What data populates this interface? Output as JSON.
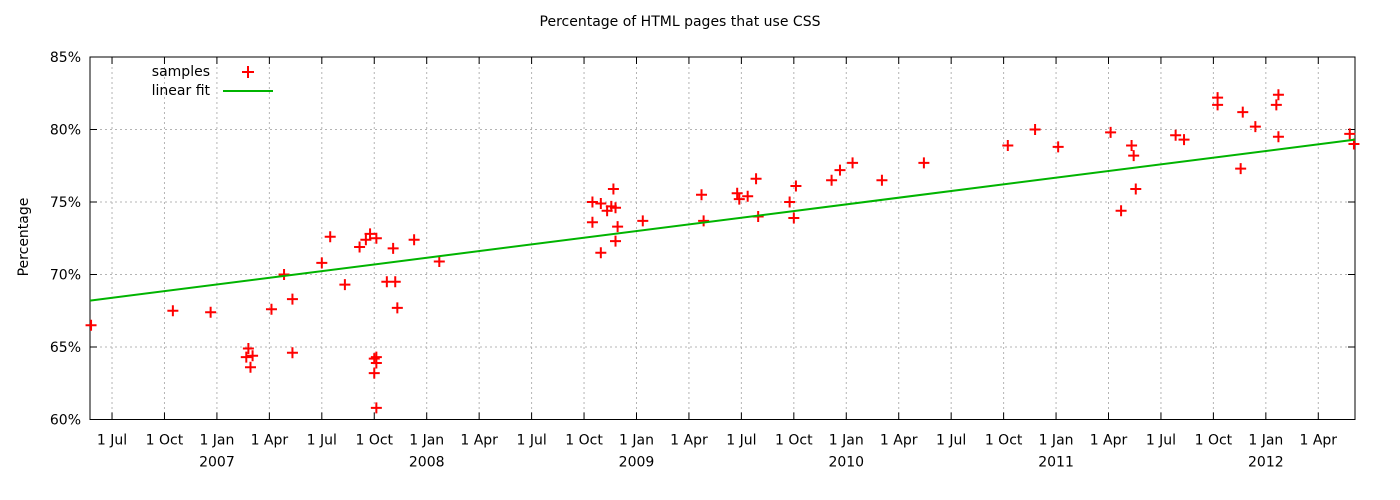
{
  "chart_data": {
    "type": "scatter",
    "title": "Percentage of HTML pages that use CSS",
    "xlabel": "",
    "ylabel": "Percentage",
    "xlim": [
      2006.395,
      2012.425
    ],
    "ylim": [
      60,
      85
    ],
    "grid": true,
    "legend_position": "top-left-inside",
    "legend": {
      "samples": "samples",
      "linear_fit": "linear fit"
    },
    "colors": {
      "samples": "#ff0000",
      "fit": "#00b400",
      "grid": "#b4b4b4",
      "axis": "#000000",
      "text": "#000000",
      "background": "#ffffff"
    },
    "y_ticks": [
      {
        "v": 60,
        "label": "60%"
      },
      {
        "v": 65,
        "label": "65%"
      },
      {
        "v": 70,
        "label": "70%"
      },
      {
        "v": 75,
        "label": "75%"
      },
      {
        "v": 80,
        "label": "80%"
      },
      {
        "v": 85,
        "label": "85%"
      }
    ],
    "x_ticks": [
      {
        "t": 2006.5,
        "label": "1 Jul"
      },
      {
        "t": 2006.75,
        "label": "1 Oct"
      },
      {
        "t": 2007.0,
        "label": "1 Jan"
      },
      {
        "t": 2007.25,
        "label": "1 Apr"
      },
      {
        "t": 2007.5,
        "label": "1 Jul"
      },
      {
        "t": 2007.75,
        "label": "1 Oct"
      },
      {
        "t": 2008.0,
        "label": "1 Jan"
      },
      {
        "t": 2008.25,
        "label": "1 Apr"
      },
      {
        "t": 2008.5,
        "label": "1 Jul"
      },
      {
        "t": 2008.75,
        "label": "1 Oct"
      },
      {
        "t": 2009.0,
        "label": "1 Jan"
      },
      {
        "t": 2009.25,
        "label": "1 Apr"
      },
      {
        "t": 2009.5,
        "label": "1 Jul"
      },
      {
        "t": 2009.75,
        "label": "1 Oct"
      },
      {
        "t": 2010.0,
        "label": "1 Jan"
      },
      {
        "t": 2010.25,
        "label": "1 Apr"
      },
      {
        "t": 2010.5,
        "label": "1 Jul"
      },
      {
        "t": 2010.75,
        "label": "1 Oct"
      },
      {
        "t": 2011.0,
        "label": "1 Jan"
      },
      {
        "t": 2011.25,
        "label": "1 Apr"
      },
      {
        "t": 2011.5,
        "label": "1 Jul"
      },
      {
        "t": 2011.75,
        "label": "1 Oct"
      },
      {
        "t": 2012.0,
        "label": "1 Jan"
      },
      {
        "t": 2012.25,
        "label": "1 Apr"
      }
    ],
    "x_year_ticks": [
      {
        "t": 2007.0,
        "label": "2007"
      },
      {
        "t": 2008.0,
        "label": "2008"
      },
      {
        "t": 2009.0,
        "label": "2009"
      },
      {
        "t": 2010.0,
        "label": "2010"
      },
      {
        "t": 2011.0,
        "label": "2011"
      },
      {
        "t": 2012.0,
        "label": "2012"
      }
    ],
    "series": [
      {
        "name": "samples",
        "type": "scatter",
        "marker": "plus",
        "color": "#ff0000",
        "points": [
          [
            2006.4,
            66.5
          ],
          [
            2006.79,
            67.5
          ],
          [
            2006.97,
            67.4
          ],
          [
            2007.14,
            64.3
          ],
          [
            2007.15,
            64.9
          ],
          [
            2007.16,
            63.6
          ],
          [
            2007.17,
            64.4
          ],
          [
            2007.26,
            67.6
          ],
          [
            2007.32,
            70.0
          ],
          [
            2007.36,
            68.3
          ],
          [
            2007.36,
            64.6
          ],
          [
            2007.5,
            70.8
          ],
          [
            2007.54,
            72.6
          ],
          [
            2007.61,
            69.3
          ],
          [
            2007.68,
            71.9
          ],
          [
            2007.71,
            72.4
          ],
          [
            2007.73,
            72.8
          ],
          [
            2007.75,
            64.2
          ],
          [
            2007.75,
            63.2
          ],
          [
            2007.76,
            72.5
          ],
          [
            2007.76,
            64.3
          ],
          [
            2007.76,
            63.9
          ],
          [
            2007.76,
            60.8
          ],
          [
            2007.81,
            69.5
          ],
          [
            2007.84,
            71.8
          ],
          [
            2007.85,
            69.5
          ],
          [
            2007.86,
            67.7
          ],
          [
            2007.94,
            72.4
          ],
          [
            2008.06,
            70.9
          ],
          [
            2008.79,
            75.0
          ],
          [
            2008.79,
            73.6
          ],
          [
            2008.83,
            74.9
          ],
          [
            2008.83,
            71.5
          ],
          [
            2008.86,
            74.4
          ],
          [
            2008.88,
            74.7
          ],
          [
            2008.89,
            75.9
          ],
          [
            2008.9,
            74.6
          ],
          [
            2008.9,
            72.3
          ],
          [
            2008.91,
            73.3
          ],
          [
            2009.03,
            73.7
          ],
          [
            2009.31,
            75.5
          ],
          [
            2009.32,
            73.7
          ],
          [
            2009.48,
            75.6
          ],
          [
            2009.49,
            75.2
          ],
          [
            2009.53,
            75.4
          ],
          [
            2009.57,
            76.6
          ],
          [
            2009.58,
            74.0
          ],
          [
            2009.73,
            75.0
          ],
          [
            2009.75,
            73.9
          ],
          [
            2009.76,
            76.1
          ],
          [
            2009.93,
            76.5
          ],
          [
            2009.97,
            77.2
          ],
          [
            2010.03,
            77.7
          ],
          [
            2010.17,
            76.5
          ],
          [
            2010.37,
            77.7
          ],
          [
            2010.77,
            78.9
          ],
          [
            2010.9,
            80.0
          ],
          [
            2011.01,
            78.8
          ],
          [
            2011.26,
            79.8
          ],
          [
            2011.31,
            74.4
          ],
          [
            2011.36,
            78.9
          ],
          [
            2011.37,
            78.2
          ],
          [
            2011.38,
            75.9
          ],
          [
            2011.57,
            79.6
          ],
          [
            2011.61,
            79.3
          ],
          [
            2011.77,
            82.2
          ],
          [
            2011.77,
            81.7
          ],
          [
            2011.88,
            77.3
          ],
          [
            2011.89,
            81.2
          ],
          [
            2011.95,
            80.2
          ],
          [
            2012.05,
            81.7
          ],
          [
            2012.06,
            82.4
          ],
          [
            2012.06,
            79.5
          ],
          [
            2012.4,
            79.7
          ],
          [
            2012.42,
            79.0
          ]
        ]
      },
      {
        "name": "linear fit",
        "type": "line",
        "color": "#00b400",
        "points": [
          [
            2006.395,
            68.2
          ],
          [
            2012.425,
            79.3
          ]
        ]
      }
    ]
  }
}
